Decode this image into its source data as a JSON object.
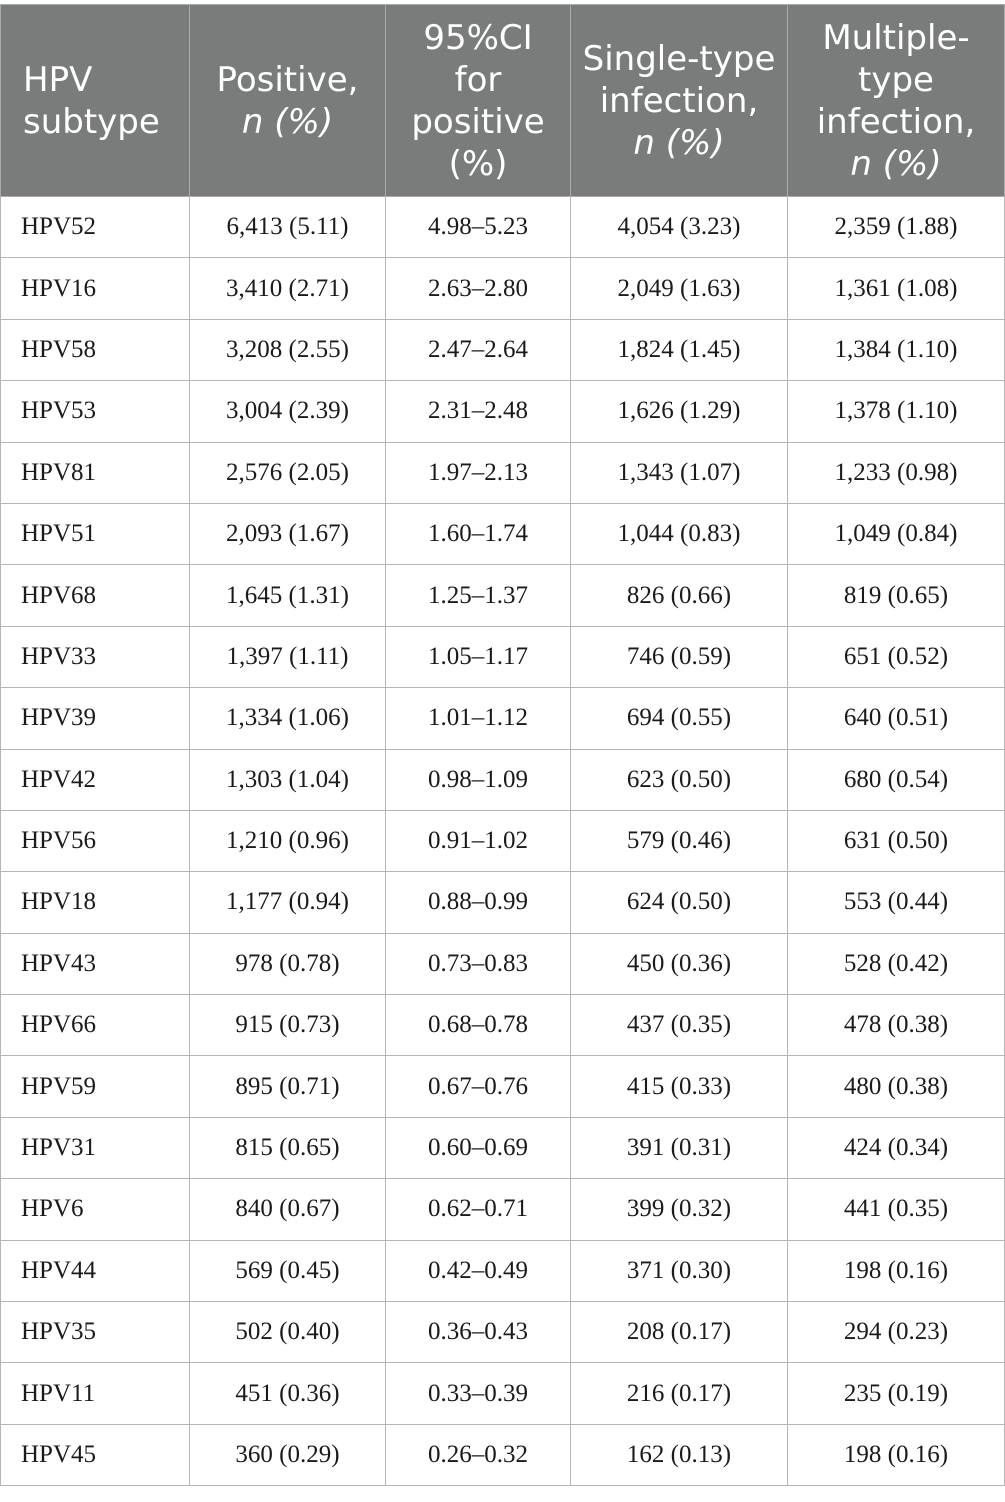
{
  "header": {
    "subtype": "HPV subtype",
    "positive": "Positive,",
    "positive_n": "n (%)",
    "ci": "95%CI for positive (%)",
    "single": "Single-type infection,",
    "single_n": "n (%)",
    "multiple": "Multiple-type infection,",
    "multiple_n": "n (%)"
  },
  "rows": [
    [
      "HPV52",
      "6,413 (5.11)",
      "4.98–5.23",
      "4,054 (3.23)",
      "2,359 (1.88)"
    ],
    [
      "HPV16",
      "3,410 (2.71)",
      "2.63–2.80",
      "2,049 (1.63)",
      "1,361 (1.08)"
    ],
    [
      "HPV58",
      "3,208 (2.55)",
      "2.47–2.64",
      "1,824 (1.45)",
      "1,384 (1.10)"
    ],
    [
      "HPV53",
      "3,004 (2.39)",
      "2.31–2.48",
      "1,626 (1.29)",
      "1,378 (1.10)"
    ],
    [
      "HPV81",
      "2,576 (2.05)",
      "1.97–2.13",
      "1,343 (1.07)",
      "1,233 (0.98)"
    ],
    [
      "HPV51",
      "2,093 (1.67)",
      "1.60–1.74",
      "1,044 (0.83)",
      "1,049 (0.84)"
    ],
    [
      "HPV68",
      "1,645 (1.31)",
      "1.25–1.37",
      "826 (0.66)",
      "819 (0.65)"
    ],
    [
      "HPV33",
      "1,397 (1.11)",
      "1.05–1.17",
      "746 (0.59)",
      "651 (0.52)"
    ],
    [
      "HPV39",
      "1,334 (1.06)",
      "1.01–1.12",
      "694 (0.55)",
      "640 (0.51)"
    ],
    [
      "HPV42",
      "1,303 (1.04)",
      "0.98–1.09",
      "623 (0.50)",
      "680 (0.54)"
    ],
    [
      "HPV56",
      "1,210 (0.96)",
      "0.91–1.02",
      "579 (0.46)",
      "631 (0.50)"
    ],
    [
      "HPV18",
      "1,177 (0.94)",
      "0.88–0.99",
      "624 (0.50)",
      "553 (0.44)"
    ],
    [
      "HPV43",
      "978 (0.78)",
      "0.73–0.83",
      "450 (0.36)",
      "528 (0.42)"
    ],
    [
      "HPV66",
      "915 (0.73)",
      "0.68–0.78",
      "437 (0.35)",
      "478 (0.38)"
    ],
    [
      "HPV59",
      "895 (0.71)",
      "0.67–0.76",
      "415 (0.33)",
      "480 (0.38)"
    ],
    [
      "HPV31",
      "815 (0.65)",
      "0.60–0.69",
      "391 (0.31)",
      "424 (0.34)"
    ],
    [
      "HPV6",
      "840 (0.67)",
      "0.62–0.71",
      "399 (0.32)",
      "441 (0.35)"
    ],
    [
      "HPV44",
      "569 (0.45)",
      "0.42–0.49",
      "371 (0.30)",
      "198 (0.16)"
    ],
    [
      "HPV35",
      "502 (0.40)",
      "0.36–0.43",
      "208 (0.17)",
      "294 (0.23)"
    ],
    [
      "HPV11",
      "451 (0.36)",
      "0.33–0.39",
      "216 (0.17)",
      "235 (0.19)"
    ],
    [
      "HPV45",
      "360 (0.29)",
      "0.26–0.32",
      "162 (0.13)",
      "198 (0.16)"
    ]
  ],
  "colors": {
    "header_bg": "#7a7b7b",
    "header_text": "#ffffff",
    "grid": "#b5b5b5"
  }
}
